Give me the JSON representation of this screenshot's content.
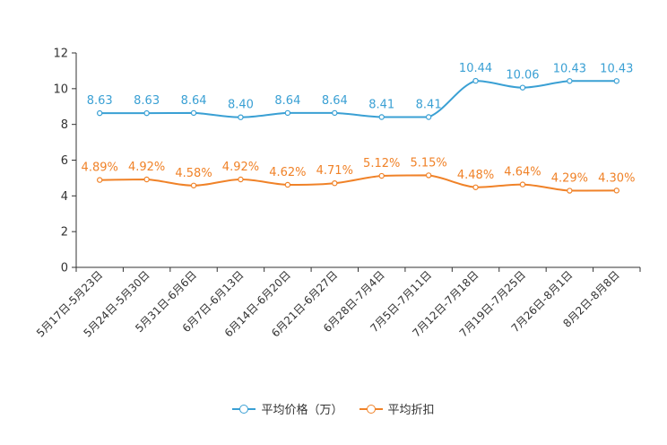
{
  "chart_data": {
    "type": "line",
    "categories": [
      "5月17日-5月23日",
      "5月24日-5月30日",
      "5月31日-6月6日",
      "6月7日-6月13日",
      "6月14日-6月20日",
      "6月21日-6月27日",
      "6月28日-7月4日",
      "7月5日-7月11日",
      "7月12日-7月18日",
      "7月19日-7月25日",
      "7月26日-8月1日",
      "8月2日-8月8日"
    ],
    "ylim": [
      0,
      12
    ],
    "yticks": [
      0,
      2,
      4,
      6,
      8,
      10,
      12
    ],
    "series": [
      {
        "name": "平均价格（万）",
        "color": "#3aa0d4",
        "values": [
          8.63,
          8.63,
          8.64,
          8.4,
          8.64,
          8.64,
          8.41,
          8.41,
          10.44,
          10.06,
          10.43,
          10.43
        ],
        "labels": [
          "8.63",
          "8.63",
          "8.64",
          "8.40",
          "8.64",
          "8.64",
          "8.41",
          "8.41",
          "10.44",
          "10.06",
          "10.43",
          "10.43"
        ]
      },
      {
        "name": "平均折扣",
        "color": "#f08228",
        "values": [
          4.89,
          4.92,
          4.58,
          4.92,
          4.62,
          4.71,
          5.12,
          5.15,
          4.48,
          4.64,
          4.29,
          4.3
        ],
        "labels": [
          "4.89%",
          "4.92%",
          "4.58%",
          "4.92%",
          "4.62%",
          "4.71%",
          "5.12%",
          "5.15%",
          "4.48%",
          "4.64%",
          "4.29%",
          "4.30%"
        ]
      }
    ],
    "legend_position": "bottom-center"
  }
}
